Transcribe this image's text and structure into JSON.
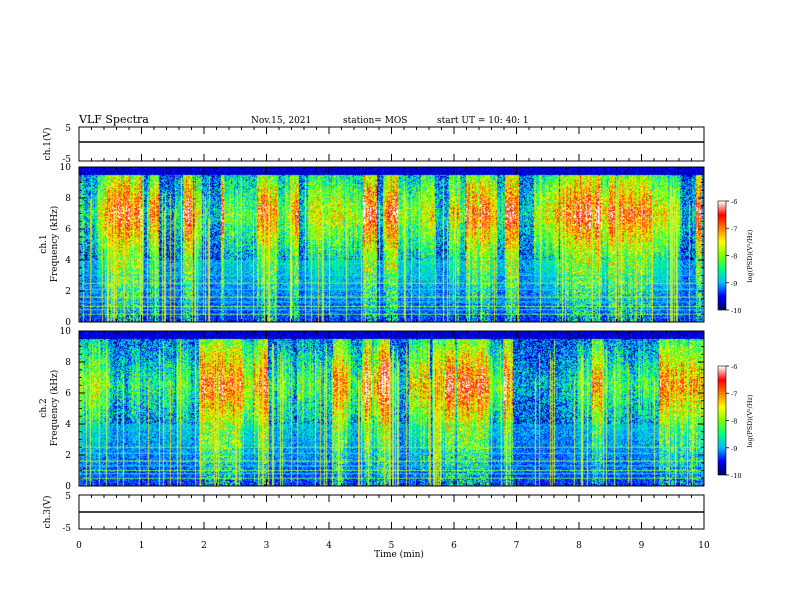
{
  "header": {
    "title": "VLF Spectra",
    "date": "Nov.15, 2021",
    "station": "station= MOS",
    "start": "start  UT =   10: 40: 1"
  },
  "colors": {
    "background": "#ffffff",
    "axes": "#000000",
    "colormap": [
      "#000066",
      "#0000ff",
      "#00bfff",
      "#00ff80",
      "#80ff00",
      "#ffff00",
      "#ff8000",
      "#ff0000",
      "#ffffff"
    ]
  },
  "chart_data": [
    {
      "type": "line",
      "panel": "ch1-waveform",
      "ylabel": "ch.1(V)",
      "ylim": [
        -5,
        5
      ],
      "y_ticks": [
        "5",
        "-5"
      ],
      "x": [
        0,
        10
      ],
      "y": [
        0,
        0
      ]
    },
    {
      "type": "heatmap",
      "panel": "ch1-spectrogram",
      "ylabel_lines": [
        "ch.1",
        "Frequency (kHz)"
      ],
      "ylim": [
        0,
        10
      ],
      "y_ticks": [
        "0",
        "2",
        "4",
        "6",
        "8",
        "10"
      ],
      "xlim": [
        0,
        10
      ],
      "z_range": [
        -10,
        -6
      ],
      "colorbar_ticks": [
        "-6",
        "-7",
        "-8",
        "-9",
        "-10"
      ],
      "colorbar_label": "log(PSD)(V²/Hz)",
      "dominant_band_khz": [
        4,
        9.5
      ],
      "peak_band_khz": [
        6,
        8
      ],
      "lines_khz": [
        0.5,
        0.8,
        1.0,
        1.3,
        1.6,
        2.1,
        2.5,
        3.0
      ]
    },
    {
      "type": "heatmap",
      "panel": "ch2-spectrogram",
      "ylabel_lines": [
        "ch.2",
        "Frequency (kHz)"
      ],
      "ylim": [
        0,
        10
      ],
      "y_ticks": [
        "0",
        "2",
        "4",
        "6",
        "8",
        "10"
      ],
      "xlim": [
        0,
        10
      ],
      "z_range": [
        -10,
        -6
      ],
      "colorbar_ticks": [
        "-6",
        "-7",
        "-8",
        "-9",
        "-10"
      ],
      "colorbar_label": "log(PSD)(V²/Hz)",
      "dominant_band_khz": [
        4,
        9.5
      ],
      "peak_band_khz": [
        5.5,
        7.5
      ],
      "lines_khz": [
        0.5,
        0.8,
        1.0,
        1.3,
        1.6,
        2.1,
        2.5
      ]
    },
    {
      "type": "line",
      "panel": "ch3-waveform",
      "ylabel": "ch.3(V)",
      "ylim": [
        -5,
        5
      ],
      "y_ticks": [
        "5",
        "-5"
      ],
      "x": [
        0,
        10
      ],
      "y": [
        0,
        0
      ]
    }
  ],
  "x_axis": {
    "label": "Time (min)",
    "min": 0,
    "max": 10,
    "ticks": [
      "0",
      "1",
      "2",
      "3",
      "4",
      "5",
      "6",
      "7",
      "8",
      "9",
      "10"
    ]
  }
}
